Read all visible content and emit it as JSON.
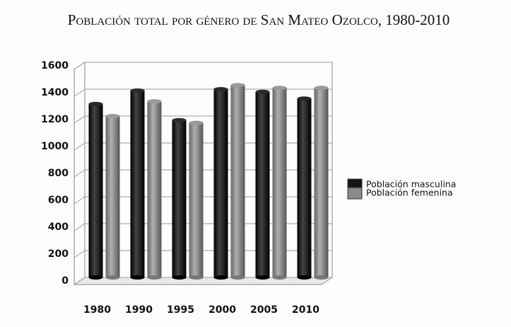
{
  "chart_data": {
    "type": "bar",
    "title": "Población total por género de San Mateo Ozolco, 1980-2010",
    "categories": [
      "1980",
      "1990",
      "1995",
      "2000",
      "2005",
      "2010"
    ],
    "series": [
      {
        "name": "Población masculina",
        "color": "#151515",
        "values": [
          1290,
          1390,
          1170,
          1400,
          1380,
          1330
        ]
      },
      {
        "name": "Población femenina",
        "color": "#8a8a8a",
        "values": [
          1200,
          1310,
          1150,
          1430,
          1410,
          1410
        ]
      }
    ],
    "ylim": [
      0,
      1600
    ],
    "yticks": [
      0,
      200,
      400,
      600,
      800,
      1000,
      1200,
      1400,
      1600
    ],
    "grid": true,
    "legend": "right"
  }
}
